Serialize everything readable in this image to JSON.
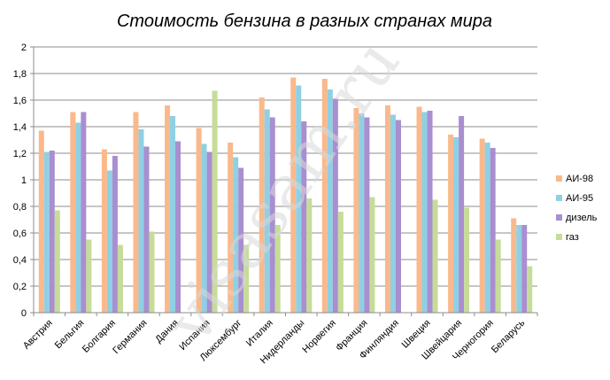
{
  "watermark": "visasam.ru",
  "chart_data": {
    "type": "bar",
    "title": "Стоимость бензина в разных странах мира",
    "xlabel": "",
    "ylabel": "",
    "ylim": [
      0,
      2
    ],
    "yticks": [
      "0",
      "0,2",
      "0,4",
      "0,6",
      "0,8",
      "1",
      "1,2",
      "1,4",
      "1,6",
      "1,8",
      "2"
    ],
    "grid": true,
    "legend_position": "right",
    "categories": [
      "Австрия",
      "Бельгия",
      "Болгария",
      "Германия",
      "Дания",
      "Испания",
      "Люксембург",
      "Италия",
      "Нидерланды",
      "Норвегия",
      "Франция",
      "Финляндия",
      "Швеция",
      "Швейцария",
      "Черногория",
      "Беларусь"
    ],
    "series": [
      {
        "name": "АИ-98",
        "color": "#f9b98c",
        "values": [
          1.37,
          1.51,
          1.23,
          1.51,
          1.56,
          1.39,
          1.28,
          1.62,
          1.77,
          1.76,
          1.54,
          1.56,
          1.55,
          1.34,
          1.31,
          0.71
        ]
      },
      {
        "name": "АИ-95",
        "color": "#8fd0e4",
        "values": [
          1.21,
          1.43,
          1.07,
          1.38,
          1.48,
          1.27,
          1.17,
          1.53,
          1.71,
          1.68,
          1.5,
          1.49,
          1.51,
          1.32,
          1.28,
          0.66
        ]
      },
      {
        "name": "дизель",
        "color": "#a98ed0",
        "values": [
          1.22,
          1.51,
          1.18,
          1.25,
          1.29,
          1.21,
          1.09,
          1.47,
          1.44,
          1.61,
          1.47,
          1.45,
          1.52,
          1.48,
          1.24,
          0.66
        ]
      },
      {
        "name": "газ",
        "color": "#c6dc98",
        "values": [
          0.77,
          0.55,
          0.51,
          0.61,
          0.0,
          1.67,
          0.51,
          0.66,
          0.86,
          0.76,
          0.87,
          0.0,
          0.85,
          0.79,
          0.55,
          0.35
        ]
      }
    ]
  }
}
